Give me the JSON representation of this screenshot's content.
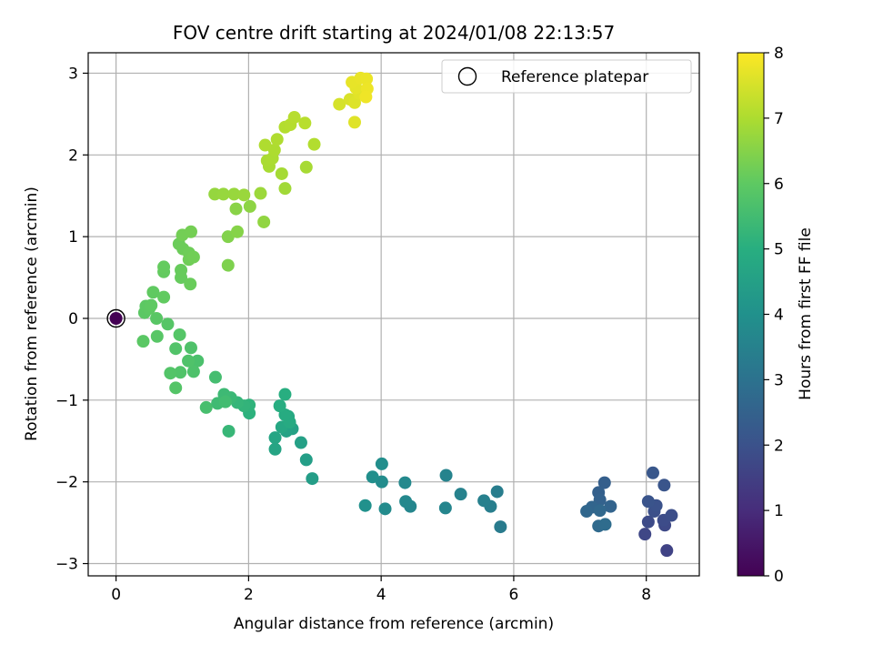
{
  "chart_data": {
    "type": "scatter",
    "title": "FOV centre drift starting at 2024/01/08 22:13:57",
    "xlabel": "Angular distance from reference (arcmin)",
    "ylabel": "Rotation from reference (arcmin)",
    "xlim": [
      -0.42,
      8.8
    ],
    "ylim": [
      -3.15,
      3.25
    ],
    "xticks": [
      0,
      2,
      4,
      6,
      8
    ],
    "xtick_labels": [
      "0",
      "2",
      "4",
      "6",
      "8"
    ],
    "yticks": [
      -3,
      -2,
      -1,
      0,
      1,
      2,
      3
    ],
    "ytick_labels": [
      "−3",
      "−2",
      "−1",
      "0",
      "1",
      "2",
      "3"
    ],
    "grid": true,
    "legend": {
      "position": "top-right",
      "entries": [
        "Reference platepar"
      ]
    },
    "reference_point": {
      "x": 0,
      "y": 0,
      "c": 0,
      "name": "Reference platepar"
    },
    "colorbar": {
      "label": "Hours from first FF file",
      "colormap": "viridis",
      "range": [
        0,
        8
      ],
      "ticks": [
        0,
        1,
        2,
        3,
        4,
        5,
        6,
        7,
        8
      ],
      "tick_labels": [
        "0",
        "1",
        "2",
        "3",
        "4",
        "5",
        "6",
        "7",
        "8"
      ]
    },
    "points": [
      {
        "x": 8.31,
        "y": -2.84,
        "c": 1.6
      },
      {
        "x": 7.98,
        "y": -2.64,
        "c": 1.7
      },
      {
        "x": 8.28,
        "y": -2.53,
        "c": 1.75
      },
      {
        "x": 8.03,
        "y": -2.49,
        "c": 1.8
      },
      {
        "x": 8.26,
        "y": -2.47,
        "c": 1.85
      },
      {
        "x": 8.38,
        "y": -2.41,
        "c": 1.9
      },
      {
        "x": 8.12,
        "y": -2.36,
        "c": 1.95
      },
      {
        "x": 8.15,
        "y": -2.29,
        "c": 2.0
      },
      {
        "x": 8.03,
        "y": -2.24,
        "c": 2.05
      },
      {
        "x": 8.27,
        "y": -2.04,
        "c": 2.1
      },
      {
        "x": 8.1,
        "y": -1.89,
        "c": 2.15
      },
      {
        "x": 7.37,
        "y": -2.01,
        "c": 2.4
      },
      {
        "x": 7.28,
        "y": -2.13,
        "c": 2.45
      },
      {
        "x": 7.3,
        "y": -2.22,
        "c": 2.5
      },
      {
        "x": 7.46,
        "y": -2.3,
        "c": 2.55
      },
      {
        "x": 7.18,
        "y": -2.31,
        "c": 2.6
      },
      {
        "x": 7.1,
        "y": -2.36,
        "c": 2.65
      },
      {
        "x": 7.3,
        "y": -2.35,
        "c": 2.7
      },
      {
        "x": 7.28,
        "y": -2.54,
        "c": 2.75
      },
      {
        "x": 7.38,
        "y": -2.52,
        "c": 2.8
      },
      {
        "x": 5.8,
        "y": -2.55,
        "c": 3.3
      },
      {
        "x": 5.75,
        "y": -2.12,
        "c": 3.35
      },
      {
        "x": 5.65,
        "y": -2.3,
        "c": 3.4
      },
      {
        "x": 5.55,
        "y": -2.23,
        "c": 3.45
      },
      {
        "x": 5.2,
        "y": -2.15,
        "c": 3.5
      },
      {
        "x": 4.98,
        "y": -1.92,
        "c": 3.55
      },
      {
        "x": 4.97,
        "y": -2.32,
        "c": 3.6
      },
      {
        "x": 4.44,
        "y": -2.3,
        "c": 3.65
      },
      {
        "x": 4.37,
        "y": -2.24,
        "c": 3.7
      },
      {
        "x": 4.36,
        "y": -2.01,
        "c": 3.75
      },
      {
        "x": 4.06,
        "y": -2.33,
        "c": 3.8
      },
      {
        "x": 4.01,
        "y": -2.0,
        "c": 3.85
      },
      {
        "x": 4.01,
        "y": -1.78,
        "c": 3.9
      },
      {
        "x": 3.87,
        "y": -1.94,
        "c": 3.95
      },
      {
        "x": 3.76,
        "y": -2.29,
        "c": 4.0
      },
      {
        "x": 2.96,
        "y": -1.96,
        "c": 4.4
      },
      {
        "x": 2.87,
        "y": -1.73,
        "c": 4.45
      },
      {
        "x": 2.79,
        "y": -1.52,
        "c": 4.5
      },
      {
        "x": 2.66,
        "y": -1.35,
        "c": 4.55
      },
      {
        "x": 2.57,
        "y": -1.38,
        "c": 4.6
      },
      {
        "x": 2.4,
        "y": -1.6,
        "c": 4.65
      },
      {
        "x": 2.4,
        "y": -1.46,
        "c": 4.7
      },
      {
        "x": 2.5,
        "y": -1.33,
        "c": 4.75
      },
      {
        "x": 2.6,
        "y": -1.2,
        "c": 4.8
      },
      {
        "x": 2.62,
        "y": -1.27,
        "c": 4.85
      },
      {
        "x": 2.55,
        "y": -1.18,
        "c": 4.9
      },
      {
        "x": 2.47,
        "y": -1.07,
        "c": 4.95
      },
      {
        "x": 2.55,
        "y": -0.93,
        "c": 5.0
      },
      {
        "x": 2.01,
        "y": -1.16,
        "c": 5.1
      },
      {
        "x": 2.01,
        "y": -1.06,
        "c": 5.15
      },
      {
        "x": 1.93,
        "y": -1.07,
        "c": 5.2
      },
      {
        "x": 1.83,
        "y": -1.03,
        "c": 5.25
      },
      {
        "x": 1.7,
        "y": -1.38,
        "c": 5.3
      },
      {
        "x": 1.73,
        "y": -0.97,
        "c": 5.35
      },
      {
        "x": 1.63,
        "y": -0.93,
        "c": 5.4
      },
      {
        "x": 1.53,
        "y": -1.04,
        "c": 5.45
      },
      {
        "x": 1.65,
        "y": -1.02,
        "c": 5.5
      },
      {
        "x": 1.5,
        "y": -0.72,
        "c": 5.55
      },
      {
        "x": 1.36,
        "y": -1.09,
        "c": 5.6
      },
      {
        "x": 1.23,
        "y": -0.52,
        "c": 5.65
      },
      {
        "x": 1.17,
        "y": -0.65,
        "c": 5.7
      },
      {
        "x": 1.13,
        "y": -0.36,
        "c": 5.72
      },
      {
        "x": 1.09,
        "y": -0.52,
        "c": 5.74
      },
      {
        "x": 0.97,
        "y": -0.66,
        "c": 5.76
      },
      {
        "x": 0.9,
        "y": -0.37,
        "c": 5.78
      },
      {
        "x": 0.82,
        "y": -0.67,
        "c": 5.8
      },
      {
        "x": 0.9,
        "y": -0.85,
        "c": 5.82
      },
      {
        "x": 0.96,
        "y": -0.2,
        "c": 5.84
      },
      {
        "x": 0.78,
        "y": -0.07,
        "c": 5.86
      },
      {
        "x": 0.62,
        "y": -0.22,
        "c": 5.88
      },
      {
        "x": 0.61,
        "y": 0.0,
        "c": 5.9
      },
      {
        "x": 0.41,
        "y": -0.28,
        "c": 5.92
      },
      {
        "x": 0.43,
        "y": 0.07,
        "c": 5.94
      },
      {
        "x": 0.45,
        "y": 0.15,
        "c": 5.96
      },
      {
        "x": 0.5,
        "y": 0.12,
        "c": 5.98
      },
      {
        "x": 0.53,
        "y": 0.16,
        "c": 6.0
      },
      {
        "x": 0.56,
        "y": 0.32,
        "c": 6.02
      },
      {
        "x": 0.72,
        "y": 0.26,
        "c": 6.04
      },
      {
        "x": 0.72,
        "y": 0.57,
        "c": 6.06
      },
      {
        "x": 0.72,
        "y": 0.63,
        "c": 6.08
      },
      {
        "x": 0.98,
        "y": 0.5,
        "c": 6.1
      },
      {
        "x": 0.98,
        "y": 0.59,
        "c": 6.12
      },
      {
        "x": 1.12,
        "y": 0.42,
        "c": 6.14
      },
      {
        "x": 0.95,
        "y": 0.91,
        "c": 6.16
      },
      {
        "x": 1.01,
        "y": 0.85,
        "c": 6.18
      },
      {
        "x": 1.1,
        "y": 0.8,
        "c": 6.2
      },
      {
        "x": 1.1,
        "y": 0.72,
        "c": 6.22
      },
      {
        "x": 1.17,
        "y": 0.75,
        "c": 6.24
      },
      {
        "x": 1.0,
        "y": 1.02,
        "c": 6.26
      },
      {
        "x": 1.13,
        "y": 1.06,
        "c": 6.28
      },
      {
        "x": 1.69,
        "y": 0.65,
        "c": 6.4
      },
      {
        "x": 1.69,
        "y": 1.0,
        "c": 6.45
      },
      {
        "x": 1.83,
        "y": 1.06,
        "c": 6.5
      },
      {
        "x": 1.81,
        "y": 1.34,
        "c": 6.55
      },
      {
        "x": 2.02,
        "y": 1.37,
        "c": 6.6
      },
      {
        "x": 2.23,
        "y": 1.18,
        "c": 6.65
      },
      {
        "x": 1.49,
        "y": 1.52,
        "c": 6.7
      },
      {
        "x": 1.62,
        "y": 1.52,
        "c": 6.72
      },
      {
        "x": 1.78,
        "y": 1.52,
        "c": 6.74
      },
      {
        "x": 1.93,
        "y": 1.51,
        "c": 6.76
      },
      {
        "x": 2.18,
        "y": 1.53,
        "c": 6.78
      },
      {
        "x": 2.55,
        "y": 1.59,
        "c": 6.85
      },
      {
        "x": 2.5,
        "y": 1.77,
        "c": 6.9
      },
      {
        "x": 2.87,
        "y": 1.85,
        "c": 6.92
      },
      {
        "x": 2.31,
        "y": 1.86,
        "c": 6.94
      },
      {
        "x": 2.28,
        "y": 1.93,
        "c": 6.96
      },
      {
        "x": 2.36,
        "y": 1.96,
        "c": 6.98
      },
      {
        "x": 2.39,
        "y": 2.06,
        "c": 7.0
      },
      {
        "x": 2.25,
        "y": 2.12,
        "c": 7.02
      },
      {
        "x": 2.43,
        "y": 2.19,
        "c": 7.04
      },
      {
        "x": 2.99,
        "y": 2.13,
        "c": 7.06
      },
      {
        "x": 2.55,
        "y": 2.34,
        "c": 7.08
      },
      {
        "x": 2.63,
        "y": 2.37,
        "c": 7.1
      },
      {
        "x": 2.69,
        "y": 2.46,
        "c": 7.12
      },
      {
        "x": 2.85,
        "y": 2.39,
        "c": 7.14
      },
      {
        "x": 3.37,
        "y": 2.62,
        "c": 7.5
      },
      {
        "x": 3.53,
        "y": 2.68,
        "c": 7.55
      },
      {
        "x": 3.6,
        "y": 2.64,
        "c": 7.6
      },
      {
        "x": 3.6,
        "y": 2.4,
        "c": 7.62
      },
      {
        "x": 3.67,
        "y": 2.75,
        "c": 7.65
      },
      {
        "x": 3.62,
        "y": 2.82,
        "c": 7.7
      },
      {
        "x": 3.56,
        "y": 2.89,
        "c": 7.72
      },
      {
        "x": 3.69,
        "y": 2.94,
        "c": 7.75
      },
      {
        "x": 3.78,
        "y": 2.93,
        "c": 7.78
      },
      {
        "x": 3.79,
        "y": 2.81,
        "c": 7.8
      },
      {
        "x": 3.77,
        "y": 2.71,
        "c": 7.82
      }
    ]
  }
}
